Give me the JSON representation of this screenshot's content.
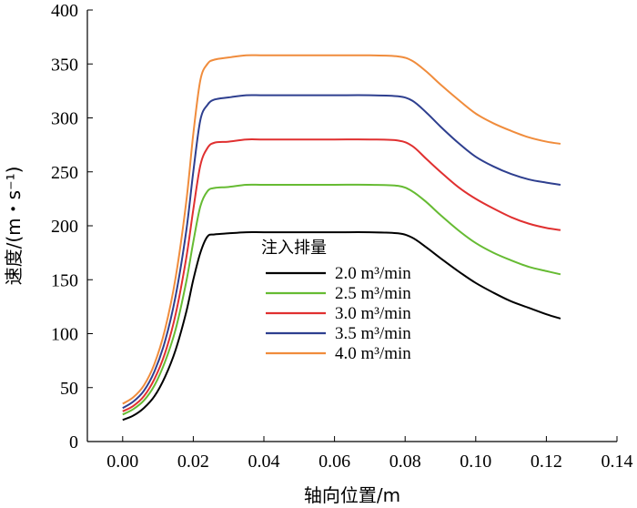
{
  "chart_data": {
    "type": "line",
    "title": "",
    "xlabel": "轴向位置/m",
    "ylabel": "速度/(m・s⁻¹)",
    "xlim": [
      -0.01,
      0.14
    ],
    "ylim": [
      0,
      400
    ],
    "xticks": [
      0.0,
      0.02,
      0.04,
      0.06,
      0.08,
      0.1,
      0.12,
      0.14
    ],
    "xtick_labels": [
      "0.00",
      "0.02",
      "0.04",
      "0.06",
      "0.08",
      "0.10",
      "0.12",
      "0.14"
    ],
    "yticks": [
      0,
      50,
      100,
      150,
      200,
      250,
      300,
      350,
      400
    ],
    "ytick_labels": [
      "0",
      "50",
      "100",
      "150",
      "200",
      "250",
      "300",
      "350",
      "400"
    ],
    "legend_title": "注入排量",
    "legend_position": "center",
    "series": [
      {
        "name": "2.0 m³/min",
        "color": "#000000",
        "x": [
          0,
          0.003,
          0.006,
          0.009,
          0.012,
          0.015,
          0.018,
          0.02,
          0.022,
          0.024,
          0.026,
          0.03,
          0.035,
          0.04,
          0.05,
          0.06,
          0.07,
          0.078,
          0.082,
          0.086,
          0.09,
          0.095,
          0.1,
          0.105,
          0.11,
          0.115,
          0.12,
          0.124
        ],
        "y": [
          20,
          24,
          31,
          42,
          60,
          85,
          120,
          150,
          175,
          190,
          192,
          193,
          194,
          194,
          194,
          194,
          194,
          193,
          189,
          180,
          170,
          158,
          147,
          138,
          130,
          124,
          118,
          114
        ]
      },
      {
        "name": "2.5 m³/min",
        "color": "#66bb33",
        "x": [
          0,
          0.003,
          0.006,
          0.009,
          0.012,
          0.015,
          0.018,
          0.02,
          0.022,
          0.024,
          0.026,
          0.03,
          0.035,
          0.04,
          0.05,
          0.06,
          0.07,
          0.078,
          0.082,
          0.086,
          0.09,
          0.095,
          0.1,
          0.105,
          0.11,
          0.115,
          0.12,
          0.124
        ],
        "y": [
          25,
          30,
          38,
          52,
          74,
          104,
          148,
          185,
          218,
          232,
          235,
          236,
          238,
          238,
          238,
          238,
          238,
          237,
          232,
          222,
          210,
          196,
          184,
          175,
          168,
          162,
          158,
          155
        ]
      },
      {
        "name": "3.0 m³/min",
        "color": "#e03030",
        "x": [
          0,
          0.003,
          0.006,
          0.009,
          0.012,
          0.015,
          0.018,
          0.02,
          0.022,
          0.024,
          0.026,
          0.03,
          0.035,
          0.04,
          0.05,
          0.06,
          0.07,
          0.078,
          0.082,
          0.086,
          0.09,
          0.095,
          0.1,
          0.105,
          0.11,
          0.115,
          0.12,
          0.124
        ],
        "y": [
          28,
          33,
          42,
          58,
          82,
          118,
          170,
          215,
          256,
          272,
          277,
          278,
          280,
          280,
          280,
          280,
          280,
          279,
          274,
          262,
          250,
          236,
          225,
          216,
          208,
          202,
          198,
          196
        ]
      },
      {
        "name": "3.5 m³/min",
        "color": "#2e3f8f",
        "x": [
          0,
          0.003,
          0.006,
          0.009,
          0.012,
          0.015,
          0.018,
          0.02,
          0.022,
          0.024,
          0.026,
          0.03,
          0.035,
          0.04,
          0.05,
          0.06,
          0.07,
          0.078,
          0.082,
          0.086,
          0.09,
          0.095,
          0.1,
          0.105,
          0.11,
          0.115,
          0.12,
          0.124
        ],
        "y": [
          31,
          37,
          47,
          65,
          93,
          135,
          195,
          250,
          298,
          312,
          317,
          319,
          321,
          321,
          321,
          321,
          321,
          320,
          316,
          305,
          292,
          277,
          264,
          255,
          248,
          243,
          240,
          238
        ]
      },
      {
        "name": "4.0 m³/min",
        "color": "#f08c3c",
        "x": [
          0,
          0.003,
          0.006,
          0.009,
          0.012,
          0.015,
          0.018,
          0.02,
          0.022,
          0.024,
          0.026,
          0.03,
          0.035,
          0.04,
          0.05,
          0.06,
          0.07,
          0.078,
          0.082,
          0.086,
          0.09,
          0.095,
          0.1,
          0.105,
          0.11,
          0.115,
          0.12,
          0.124
        ],
        "y": [
          35,
          41,
          52,
          72,
          104,
          152,
          222,
          285,
          335,
          350,
          354,
          356,
          358,
          358,
          358,
          358,
          358,
          357,
          353,
          343,
          331,
          317,
          304,
          295,
          288,
          282,
          278,
          276
        ]
      }
    ]
  }
}
